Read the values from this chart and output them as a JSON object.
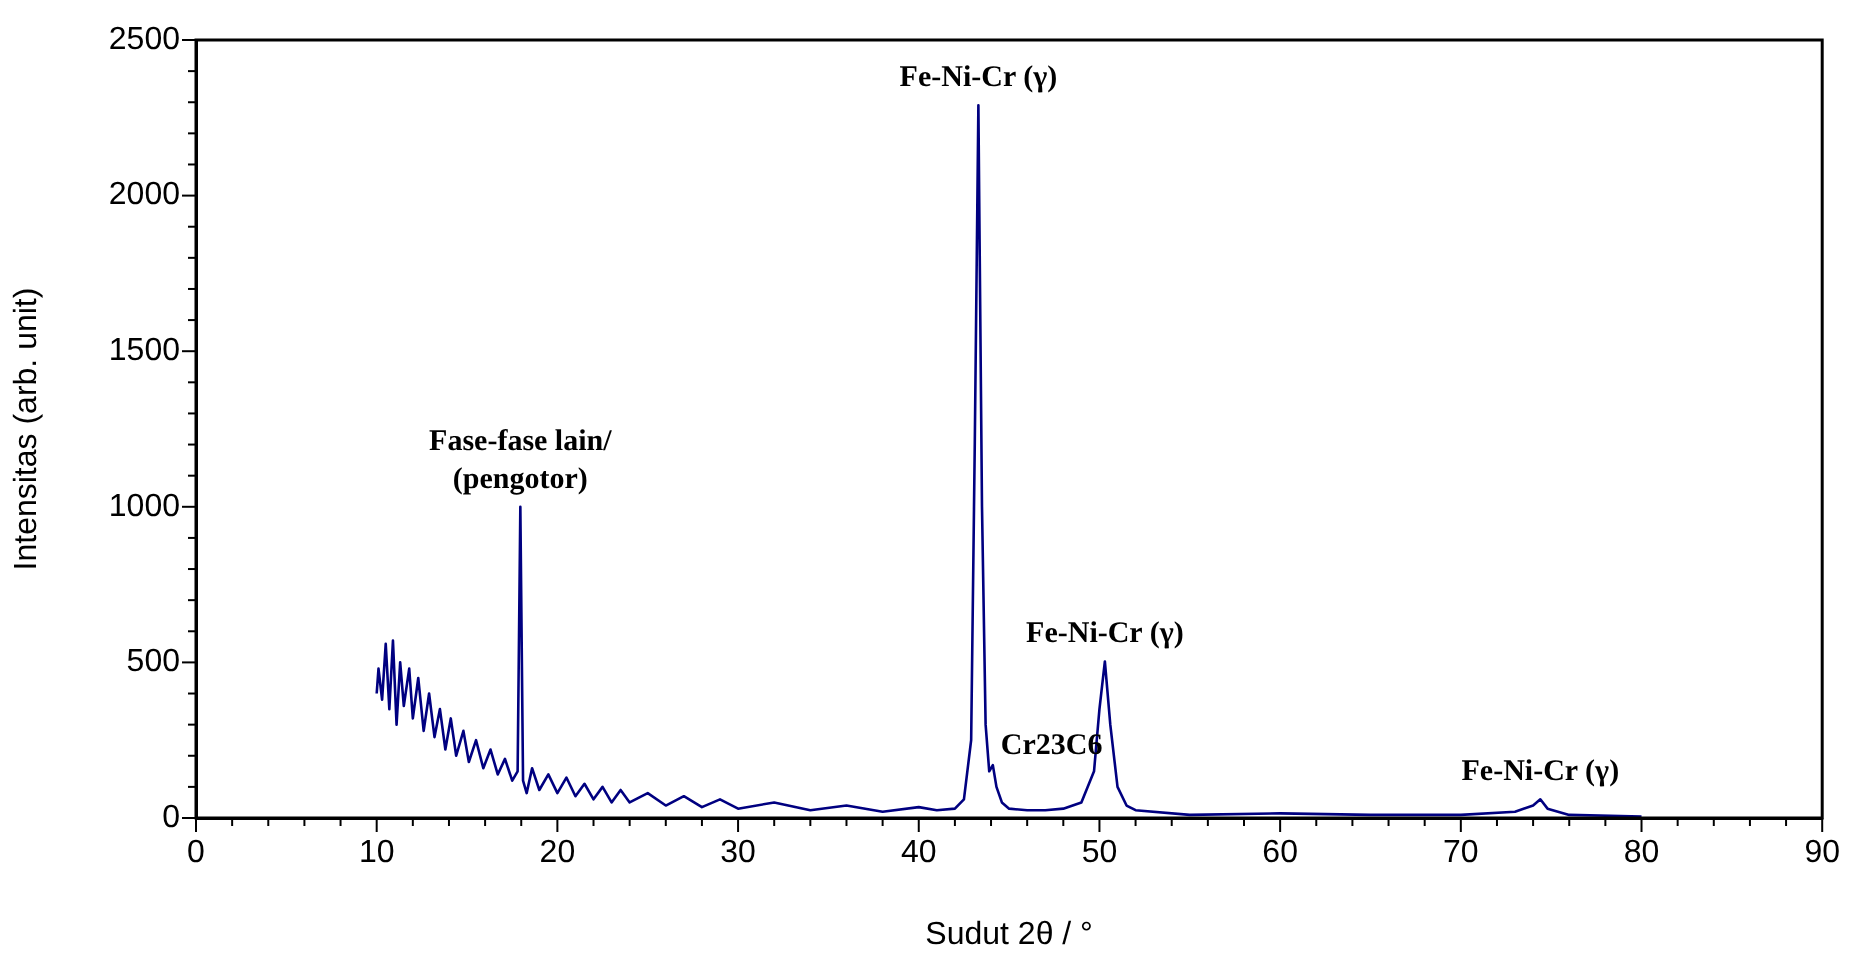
{
  "chart_data": {
    "type": "line",
    "xlabel": "Sudut 2θ / °",
    "ylabel": "Intensitas (arb. unit)",
    "x": [
      10.0,
      10.1,
      10.3,
      10.5,
      10.7,
      10.9,
      11.1,
      11.3,
      11.5,
      11.8,
      12.0,
      12.3,
      12.6,
      12.9,
      13.2,
      13.5,
      13.8,
      14.1,
      14.4,
      14.8,
      15.1,
      15.5,
      15.9,
      16.3,
      16.7,
      17.1,
      17.5,
      17.8,
      17.95,
      18.1,
      18.3,
      18.6,
      19.0,
      19.5,
      20.0,
      20.5,
      21.0,
      21.5,
      22.0,
      22.5,
      23.0,
      23.5,
      24.0,
      25.0,
      26.0,
      27.0,
      28.0,
      29.0,
      30.0,
      32.0,
      34.0,
      36.0,
      38.0,
      40.0,
      41.0,
      42.0,
      42.5,
      42.9,
      43.1,
      43.3,
      43.5,
      43.7,
      43.9,
      44.1,
      44.3,
      44.6,
      45.0,
      46.0,
      47.0,
      48.0,
      49.0,
      49.7,
      50.0,
      50.3,
      50.6,
      51.0,
      51.5,
      52.0,
      55.0,
      60.0,
      65.0,
      70.0,
      73.0,
      74.0,
      74.4,
      74.8,
      76.0,
      80.0
    ],
    "series": [
      {
        "color": "#000080",
        "values": [
          400,
          480,
          380,
          560,
          350,
          570,
          300,
          500,
          360,
          480,
          320,
          450,
          280,
          400,
          260,
          350,
          220,
          320,
          200,
          280,
          180,
          250,
          160,
          220,
          140,
          190,
          120,
          150,
          1000,
          120,
          80,
          160,
          90,
          140,
          80,
          130,
          70,
          110,
          60,
          100,
          50,
          90,
          50,
          80,
          40,
          70,
          35,
          60,
          30,
          50,
          25,
          40,
          20,
          35,
          25,
          30,
          60,
          250,
          1200,
          2290,
          1000,
          300,
          150,
          170,
          100,
          50,
          30,
          25,
          25,
          30,
          50,
          150,
          350,
          503,
          300,
          100,
          40,
          25,
          10,
          15,
          10,
          10,
          20,
          40,
          60,
          30,
          10,
          5
        ]
      }
    ],
    "xlim": [
      0,
      90
    ],
    "ylim": [
      0,
      2500
    ],
    "xticks": [
      0,
      {
        "value": 2,
        "label": null
      },
      {
        "value": 4,
        "label": null
      },
      {
        "value": 6,
        "label": null
      },
      {
        "value": 8,
        "label": null
      },
      10,
      {
        "value": 12,
        "label": null
      },
      {
        "value": 14,
        "label": null
      },
      {
        "value": 16,
        "label": null
      },
      {
        "value": 18,
        "label": null
      },
      20,
      {
        "value": 22,
        "label": null
      },
      {
        "value": 24,
        "label": null
      },
      {
        "value": 26,
        "label": null
      },
      {
        "value": 28,
        "label": null
      },
      30,
      {
        "value": 32,
        "label": null
      },
      {
        "value": 34,
        "label": null
      },
      {
        "value": 36,
        "label": null
      },
      {
        "value": 38,
        "label": null
      },
      40,
      {
        "value": 42,
        "label": null
      },
      {
        "value": 44,
        "label": null
      },
      {
        "value": 46,
        "label": null
      },
      {
        "value": 48,
        "label": null
      },
      50,
      {
        "value": 52,
        "label": null
      },
      {
        "value": 54,
        "label": null
      },
      {
        "value": 56,
        "label": null
      },
      {
        "value": 58,
        "label": null
      },
      60,
      {
        "value": 62,
        "label": null
      },
      {
        "value": 64,
        "label": null
      },
      {
        "value": 66,
        "label": null
      },
      {
        "value": 68,
        "label": null
      },
      70,
      {
        "value": 72,
        "label": null
      },
      {
        "value": 74,
        "label": null
      },
      {
        "value": 76,
        "label": null
      },
      {
        "value": 78,
        "label": null
      },
      80,
      {
        "value": 82,
        "label": null
      },
      {
        "value": 84,
        "label": null
      },
      {
        "value": 86,
        "label": null
      },
      {
        "value": 88,
        "label": null
      },
      90
    ],
    "yticks": [
      0,
      {
        "value": 100,
        "label": null
      },
      {
        "value": 200,
        "label": null
      },
      {
        "value": 300,
        "label": null
      },
      {
        "value": 400,
        "label": null
      },
      500,
      {
        "value": 600,
        "label": null
      },
      {
        "value": 700,
        "label": null
      },
      {
        "value": 800,
        "label": null
      },
      {
        "value": 900,
        "label": null
      },
      1000,
      {
        "value": 1100,
        "label": null
      },
      {
        "value": 1200,
        "label": null
      },
      {
        "value": 1300,
        "label": null
      },
      {
        "value": 1400,
        "label": null
      },
      1500,
      {
        "value": 1600,
        "label": null
      },
      {
        "value": 1700,
        "label": null
      },
      {
        "value": 1800,
        "label": null
      },
      {
        "value": 1900,
        "label": null
      },
      2000,
      {
        "value": 2100,
        "label": null
      },
      {
        "value": 2200,
        "label": null
      },
      {
        "value": 2300,
        "label": null
      },
      {
        "value": 2400,
        "label": null
      },
      2500
    ],
    "grid": false,
    "legend": false,
    "marker": "none",
    "line_style": "solid",
    "annotations": [
      {
        "text": "Fe-Ni-Cr (γ)",
        "x": 43.3,
        "y": 2290
      },
      {
        "text": "Fase-fase lain/\n(pengotor)",
        "x": 17.95,
        "y": 1000
      },
      {
        "text": "Cr23C6",
        "x": 44.1,
        "y": 170
      },
      {
        "text": "Fe-Ni-Cr (γ)",
        "x": 50.3,
        "y": 503
      },
      {
        "text": "Fe-Ni-Cr (γ)",
        "x": 74.4,
        "y": 60
      }
    ]
  }
}
